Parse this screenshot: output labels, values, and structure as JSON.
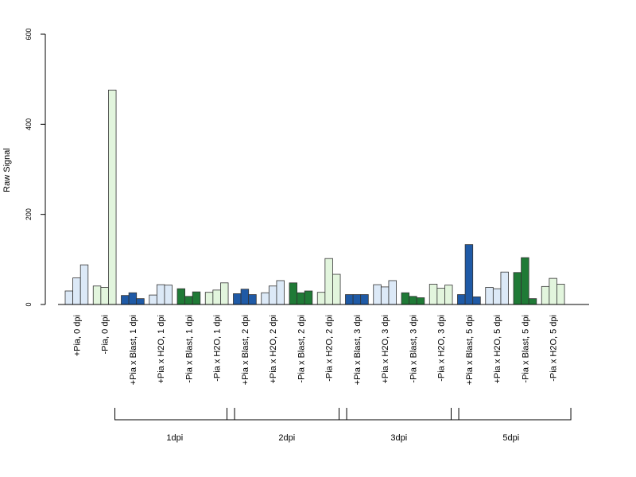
{
  "chart_data": {
    "type": "bar",
    "ylabel": "Raw Signal",
    "xlabel": "",
    "title": "",
    "ylim": [
      0,
      600
    ],
    "yticks": [
      0,
      200,
      400,
      600
    ],
    "grid": false,
    "colors": {
      "blue_dark": "#1f5aa6",
      "blue_light": "#dce9f7",
      "green_dark": "#1f7a36",
      "green_light": "#e2f5dd"
    },
    "categories": [
      {
        "label": "+Pia, 0 dpi",
        "color": "blue_light",
        "values": [
          30,
          59,
          88
        ]
      },
      {
        "label": "-Pia, 0 dpi",
        "color": "green_light",
        "values": [
          41,
          38,
          476
        ]
      },
      {
        "label": "+Pia x Blast, 1 dpi",
        "color": "blue_dark",
        "values": [
          20,
          26,
          13
        ]
      },
      {
        "label": "+Pia x H2O, 1 dpi",
        "color": "blue_light",
        "values": [
          21,
          44,
          43
        ]
      },
      {
        "label": "-Pia x Blast, 1 dpi",
        "color": "green_dark",
        "values": [
          35,
          18,
          28
        ]
      },
      {
        "label": "-Pia x H2O, 1 dpi",
        "color": "green_light",
        "values": [
          27,
          32,
          48
        ]
      },
      {
        "label": "+Pia x Blast, 2 dpi",
        "color": "blue_dark",
        "values": [
          24,
          34,
          22
        ]
      },
      {
        "label": "+Pia x H2O, 2 dpi",
        "color": "blue_light",
        "values": [
          26,
          41,
          53
        ]
      },
      {
        "label": "-Pia x Blast, 2 dpi",
        "color": "green_dark",
        "values": [
          48,
          26,
          30
        ]
      },
      {
        "label": "-Pia x H2O, 2 dpi",
        "color": "green_light",
        "values": [
          27,
          102,
          67
        ]
      },
      {
        "label": "+Pia x Blast, 3 dpi",
        "color": "blue_dark",
        "values": [
          22,
          22,
          22
        ]
      },
      {
        "label": "+Pia x H2O, 3 dpi",
        "color": "blue_light",
        "values": [
          44,
          39,
          53
        ]
      },
      {
        "label": "-Pia x Blast, 3 dpi",
        "color": "green_dark",
        "values": [
          26,
          18,
          15
        ]
      },
      {
        "label": "-Pia x H2O, 3 dpi",
        "color": "green_light",
        "values": [
          45,
          36,
          43
        ]
      },
      {
        "label": "+Pia x Blast, 5 dpi",
        "color": "blue_dark",
        "values": [
          22,
          133,
          17
        ]
      },
      {
        "label": "+Pia x H2O, 5 dpi",
        "color": "blue_light",
        "values": [
          38,
          35,
          72
        ]
      },
      {
        "label": "-Pia x Blast, 5 dpi",
        "color": "green_dark",
        "values": [
          71,
          104,
          13
        ]
      },
      {
        "label": "-Pia x H2O, 5 dpi",
        "color": "green_light",
        "values": [
          40,
          58,
          45
        ]
      }
    ],
    "groups": [
      {
        "label": "1dpi",
        "from": 2,
        "to": 5
      },
      {
        "label": "2dpi",
        "from": 6,
        "to": 9
      },
      {
        "label": "3dpi",
        "from": 10,
        "to": 13
      },
      {
        "label": "5dpi",
        "from": 14,
        "to": 17
      }
    ]
  }
}
